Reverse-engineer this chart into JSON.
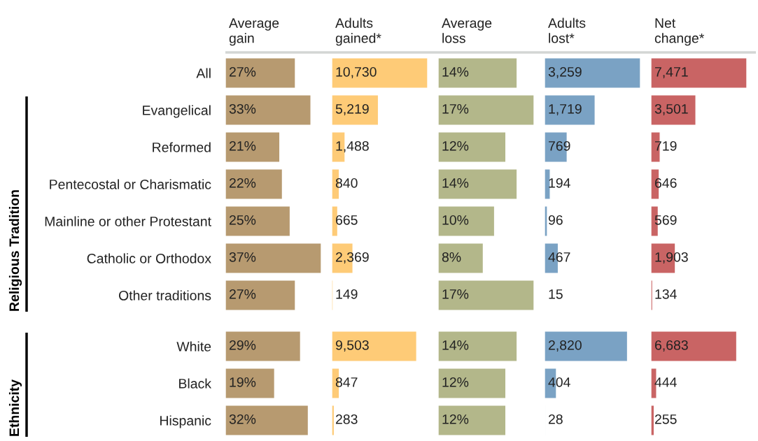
{
  "chart_data": [
    {
      "type": "bar",
      "orientation": "horizontal",
      "title": "Average\ngain",
      "categories": [
        "All"
      ],
      "values": [
        27
      ],
      "value_labels": [
        "27%"
      ],
      "color": "#b79a70",
      "tick_labels": "y"
    },
    {
      "type": "bar",
      "orientation": "horizontal",
      "title": "Adults\ngained*",
      "values": [
        10730
      ],
      "value_labels": [
        "10,730"
      ],
      "color": "#fecb77",
      "tick_labels": false
    },
    {
      "type": "bar",
      "orientation": "horizontal",
      "title": "Average\nloss",
      "values": [
        14
      ],
      "value_labels": [
        "14%"
      ],
      "color": "#b3b78a",
      "tick_labels": false
    },
    {
      "type": "bar",
      "orientation": "horizontal",
      "title": "Adults\nlost*",
      "values": [
        3259
      ],
      "value_labels": [
        "3,259"
      ],
      "color": "#7aa2c4",
      "tick_labels": false
    },
    {
      "type": "bar",
      "orientation": "horizontal",
      "title": "Net\nchange*",
      "values": [
        7471
      ],
      "value_labels": [
        "7,471"
      ],
      "color": "#c96464",
      "tick_labels": false
    },
    {
      "type": "bar",
      "orientation": "horizontal",
      "annotations": [
        "Religious Tradition"
      ],
      "categories": [
        "Evangelical",
        "Reformed",
        "Pentecostal or Charismatic",
        "Mainline or other Protestant",
        "Catholic or Orthodox",
        "Other traditions"
      ],
      "values": [
        33,
        21,
        22,
        25,
        37,
        27
      ],
      "value_labels": [
        "33%",
        "21%",
        "22%",
        "25%",
        "37%",
        "27%"
      ],
      "color": "#b79a70",
      "tick_labels": "y"
    },
    {
      "type": "bar",
      "orientation": "horizontal",
      "values": [
        5219,
        1488,
        840,
        665,
        2369,
        149
      ],
      "value_labels": [
        "5,219",
        "1,488",
        "840",
        "665",
        "2,369",
        "149"
      ],
      "color": "#fecb77",
      "tick_labels": false
    },
    {
      "type": "bar",
      "orientation": "horizontal",
      "values": [
        17,
        12,
        14,
        10,
        8,
        17
      ],
      "value_labels": [
        "17%",
        "12%",
        "14%",
        "10%",
        "8%",
        "17%"
      ],
      "color": "#b3b78a",
      "tick_labels": false
    },
    {
      "type": "bar",
      "orientation": "horizontal",
      "values": [
        1719,
        769,
        194,
        96,
        467,
        15
      ],
      "value_labels": [
        "1,719",
        "769",
        "194",
        "96",
        "467",
        "15"
      ],
      "color": "#7aa2c4",
      "tick_labels": false
    },
    {
      "type": "bar",
      "orientation": "horizontal",
      "values": [
        3501,
        719,
        646,
        569,
        1903,
        134
      ],
      "value_labels": [
        "3,501",
        "719",
        "646",
        "569",
        "1,903",
        "134"
      ],
      "color": "#c96464",
      "tick_labels": false
    },
    {
      "type": "bar",
      "orientation": "horizontal",
      "annotations": [
        "Ethnicity"
      ],
      "categories": [
        "White",
        "Black",
        "Hispanic"
      ],
      "values": [
        29,
        19,
        32
      ],
      "value_labels": [
        "29%",
        "19%",
        "32%"
      ],
      "color": "#b79a70",
      "tick_labels": "y"
    },
    {
      "type": "bar",
      "orientation": "horizontal",
      "values": [
        9503,
        847,
        283
      ],
      "value_labels": [
        "9,503",
        "847",
        "283"
      ],
      "color": "#fecb77",
      "tick_labels": false
    },
    {
      "type": "bar",
      "orientation": "horizontal",
      "values": [
        14,
        12,
        12
      ],
      "value_labels": [
        "14%",
        "12%",
        "12%"
      ],
      "color": "#b3b78a",
      "tick_labels": false
    },
    {
      "type": "bar",
      "orientation": "horizontal",
      "values": [
        2820,
        404,
        28
      ],
      "value_labels": [
        "2,820",
        "404",
        "28"
      ],
      "color": "#7aa2c4",
      "tick_labels": false
    },
    {
      "type": "bar",
      "orientation": "horizontal",
      "values": [
        6683,
        444,
        255
      ],
      "value_labels": [
        "6,683",
        "444",
        "255"
      ],
      "color": "#c96464",
      "tick_labels": false
    }
  ]
}
